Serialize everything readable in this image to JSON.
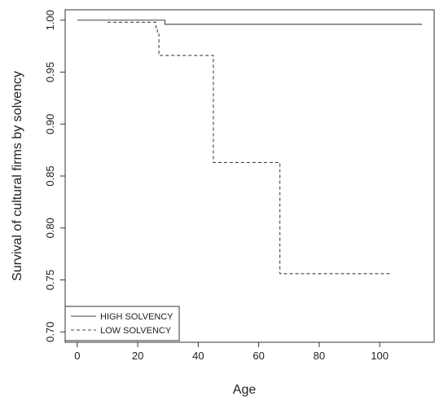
{
  "chart_data": {
    "type": "line",
    "title": "",
    "xlabel": "Age",
    "ylabel": "Survival of cultural firms by solvency",
    "xlim": [
      -4,
      118
    ],
    "ylim": [
      0.69,
      1.01
    ],
    "xticks": [
      0,
      20,
      40,
      60,
      80,
      100
    ],
    "xtick_labels": [
      "0",
      "20",
      "40",
      "60",
      "80",
      "100"
    ],
    "yticks": [
      0.7,
      0.75,
      0.8,
      0.85,
      0.9,
      0.95,
      1.0
    ],
    "ytick_labels": [
      "0.70",
      "0.75",
      "0.80",
      "0.85",
      "0.90",
      "0.95",
      "1.00"
    ],
    "grid": false,
    "legend_position": "bottom-left",
    "series": [
      {
        "name": "HIGH SOLVENCY",
        "line_style": "solid",
        "color": "#444444",
        "step": true,
        "x": [
          0,
          29,
          114
        ],
        "y": [
          1.0,
          0.996,
          0.996
        ]
      },
      {
        "name": "LOW SOLVENCY",
        "line_style": "dashed",
        "color": "#444444",
        "step": true,
        "x": [
          10,
          26,
          26.5,
          27,
          45,
          67,
          104
        ],
        "y": [
          0.998,
          0.993,
          0.988,
          0.966,
          0.863,
          0.756,
          0.756
        ]
      }
    ]
  }
}
